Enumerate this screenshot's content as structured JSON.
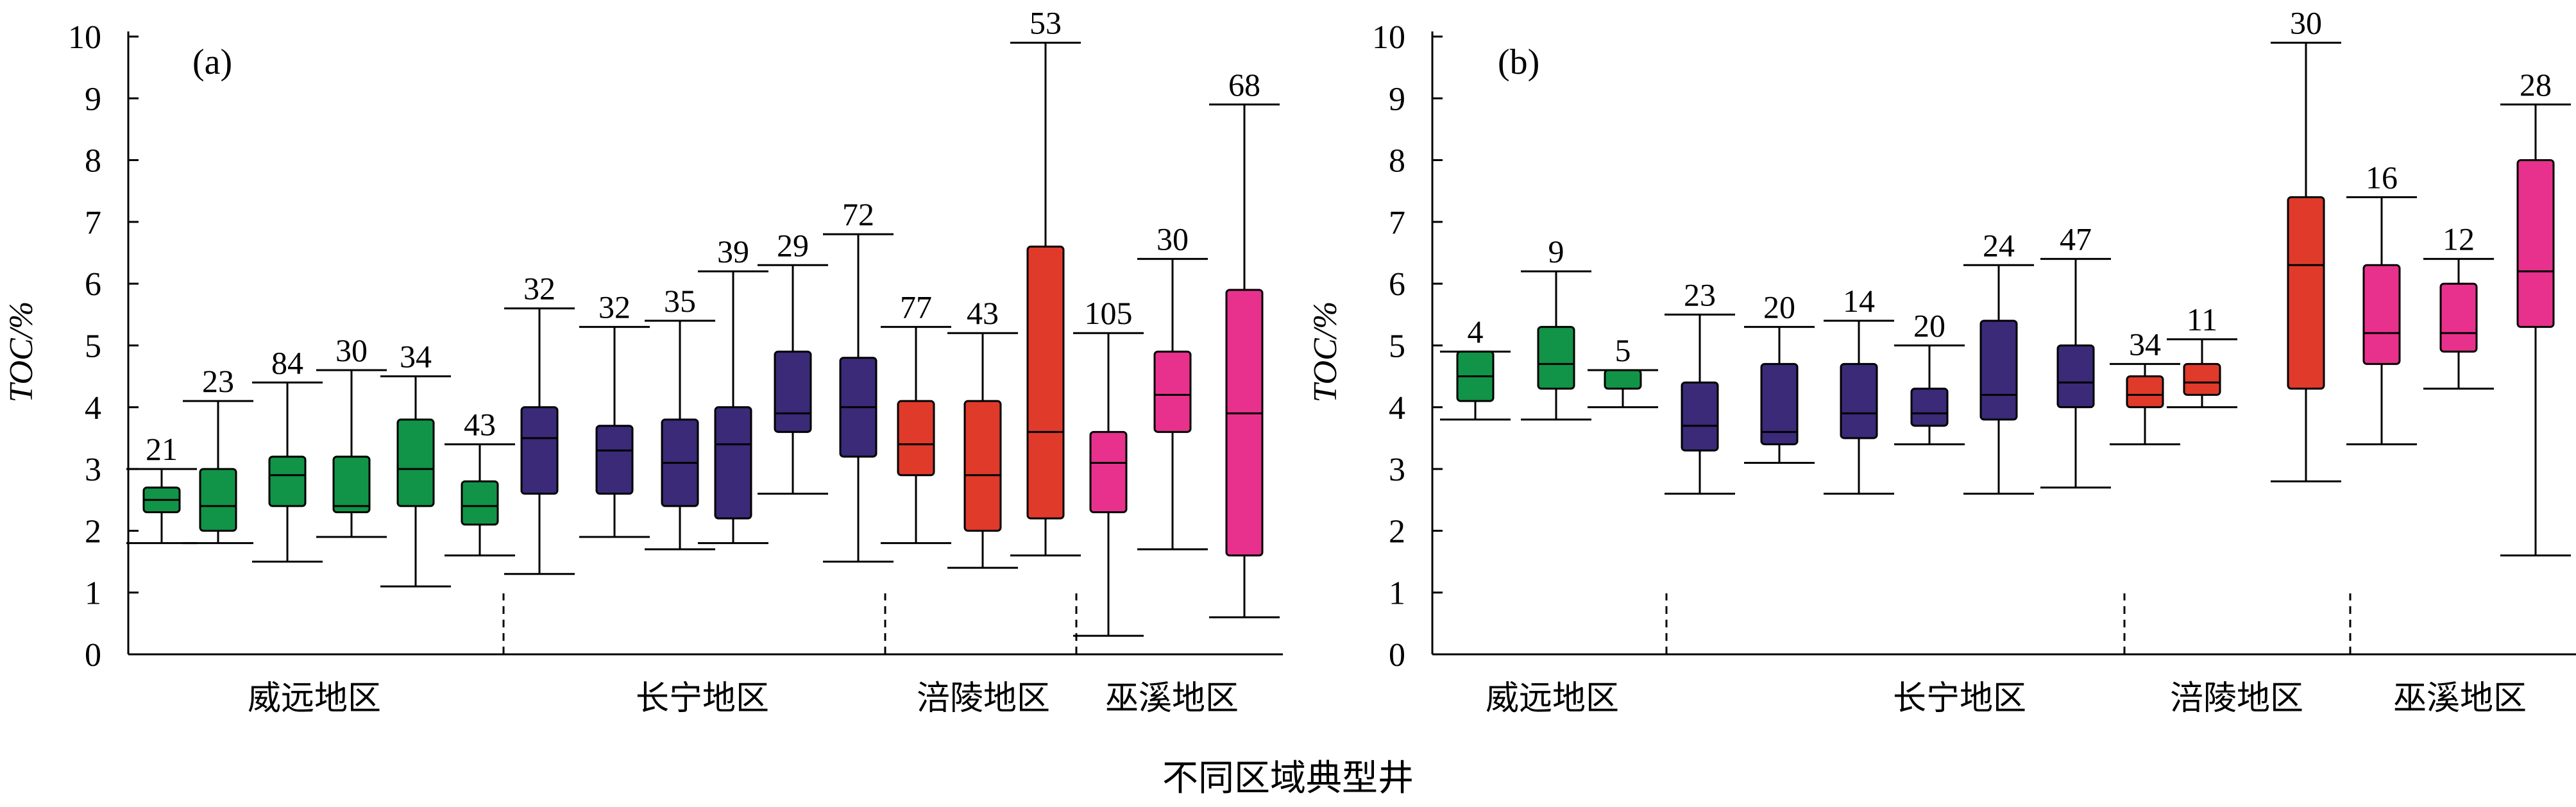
{
  "x_title": "不同区域典型井",
  "colors": {
    "weiyuan": "#119447",
    "changning": "#3a2a78",
    "fuling": "#e03a2b",
    "wuxi": "#e8318c",
    "axis": "#000000"
  },
  "chart_data": [
    {
      "type": "boxplot",
      "panel_label": "(a)",
      "ylabel": "TOC/%",
      "xlabel": "不同区域典型井",
      "ylim": [
        0,
        10
      ],
      "yticks": [
        0,
        1,
        2,
        3,
        4,
        5,
        6,
        7,
        8,
        9,
        10
      ],
      "groups": [
        {
          "name": "威远地区",
          "color_key": "weiyuan",
          "boxes": [
            {
              "n": "21",
              "min": 1.8,
              "q1": 2.3,
              "median": 2.5,
              "q3": 2.7,
              "max": 3.0
            },
            {
              "n": "23",
              "min": 1.8,
              "q1": 2.0,
              "median": 2.4,
              "q3": 3.0,
              "max": 4.1
            },
            {
              "n": "84",
              "min": 1.5,
              "q1": 2.4,
              "median": 2.9,
              "q3": 3.2,
              "max": 4.4
            },
            {
              "n": "30",
              "min": 1.9,
              "q1": 2.3,
              "median": 2.4,
              "q3": 3.2,
              "max": 4.6
            },
            {
              "n": "34",
              "min": 1.1,
              "q1": 2.4,
              "median": 3.0,
              "q3": 3.8,
              "max": 4.5
            },
            {
              "n": "43",
              "min": 1.6,
              "q1": 2.1,
              "median": 2.4,
              "q3": 2.8,
              "max": 3.4
            }
          ]
        },
        {
          "name": "长宁地区",
          "color_key": "changning",
          "boxes": [
            {
              "n": "32",
              "min": 1.3,
              "q1": 2.6,
              "median": 3.5,
              "q3": 4.0,
              "max": 5.6
            },
            {
              "n": "32",
              "min": 1.9,
              "q1": 2.6,
              "median": 3.3,
              "q3": 3.7,
              "max": 5.3
            },
            {
              "n": "35",
              "min": 1.7,
              "q1": 2.4,
              "median": 3.1,
              "q3": 3.8,
              "max": 5.4
            },
            {
              "n": "39",
              "min": 1.8,
              "q1": 2.2,
              "median": 3.4,
              "q3": 4.0,
              "max": 6.2
            },
            {
              "n": "29",
              "min": 2.6,
              "q1": 3.6,
              "median": 3.9,
              "q3": 4.9,
              "max": 6.3
            },
            {
              "n": "72",
              "min": 1.5,
              "q1": 3.2,
              "median": 4.0,
              "q3": 4.8,
              "max": 6.8
            }
          ]
        },
        {
          "name": "涪陵地区",
          "color_key": "fuling",
          "boxes": [
            {
              "n": "77",
              "min": 1.8,
              "q1": 2.9,
              "median": 3.4,
              "q3": 4.1,
              "max": 5.3
            },
            {
              "n": "43",
              "min": 1.4,
              "q1": 2.0,
              "median": 2.9,
              "q3": 4.1,
              "max": 5.2
            },
            {
              "n": "53",
              "min": 1.6,
              "q1": 2.2,
              "median": 3.6,
              "q3": 6.6,
              "max": 9.9
            }
          ]
        },
        {
          "name": "巫溪地区",
          "color_key": "wuxi",
          "boxes": [
            {
              "n": "105",
              "min": 0.3,
              "q1": 2.3,
              "median": 3.1,
              "q3": 3.6,
              "max": 5.2
            },
            {
              "n": "30",
              "min": 1.7,
              "q1": 3.6,
              "median": 4.2,
              "q3": 4.9,
              "max": 6.4
            },
            {
              "n": "68",
              "min": 0.6,
              "q1": 1.6,
              "median": 3.9,
              "q3": 5.9,
              "max": 8.9
            }
          ]
        }
      ]
    },
    {
      "type": "boxplot",
      "panel_label": "(b)",
      "ylabel": "TOC/%",
      "xlabel": "不同区域典型井",
      "ylim": [
        0,
        10
      ],
      "yticks": [
        0,
        1,
        2,
        3,
        4,
        5,
        6,
        7,
        8,
        9,
        10
      ],
      "groups": [
        {
          "name": "威远地区",
          "color_key": "weiyuan",
          "boxes": [
            {
              "n": "4",
              "min": 3.8,
              "q1": 4.1,
              "median": 4.5,
              "q3": 4.9,
              "max": 4.9
            },
            {
              "n": "9",
              "min": 3.8,
              "q1": 4.3,
              "median": 4.7,
              "q3": 5.3,
              "max": 6.2
            },
            {
              "n": "5",
              "min": 4.0,
              "q1": 4.3,
              "median": 4.6,
              "q3": 4.6,
              "max": 4.6
            }
          ]
        },
        {
          "name": "长宁地区",
          "color_key": "changning",
          "boxes": [
            {
              "n": "23",
              "min": 2.6,
              "q1": 3.3,
              "median": 3.7,
              "q3": 4.4,
              "max": 5.5
            },
            {
              "n": "20",
              "min": 3.1,
              "q1": 3.4,
              "median": 3.6,
              "q3": 4.7,
              "max": 5.3
            },
            {
              "n": "14",
              "min": 2.6,
              "q1": 3.5,
              "median": 3.9,
              "q3": 4.7,
              "max": 5.4
            },
            {
              "n": "20",
              "min": 3.4,
              "q1": 3.7,
              "median": 3.9,
              "q3": 4.3,
              "max": 5.0
            },
            {
              "n": "24",
              "min": 2.6,
              "q1": 3.8,
              "median": 4.2,
              "q3": 5.4,
              "max": 6.3
            },
            {
              "n": "47",
              "min": 2.7,
              "q1": 4.0,
              "median": 4.4,
              "q3": 5.0,
              "max": 6.4
            }
          ]
        },
        {
          "name": "涪陵地区",
          "color_key": "fuling",
          "boxes": [
            {
              "n": "34",
              "min": 3.4,
              "q1": 4.0,
              "median": 4.2,
              "q3": 4.5,
              "max": 4.7
            },
            {
              "n": "11",
              "min": 4.0,
              "q1": 4.2,
              "median": 4.4,
              "q3": 4.7,
              "max": 5.1
            },
            {
              "n": "30",
              "min": 2.8,
              "q1": 4.3,
              "median": 6.3,
              "q3": 7.4,
              "max": 9.9
            }
          ]
        },
        {
          "name": "巫溪地区",
          "color_key": "wuxi",
          "boxes": [
            {
              "n": "16",
              "min": 3.4,
              "q1": 4.7,
              "median": 5.2,
              "q3": 6.3,
              "max": 7.4
            },
            {
              "n": "12",
              "min": 4.3,
              "q1": 4.9,
              "median": 5.2,
              "q3": 6.0,
              "max": 6.4
            },
            {
              "n": "28",
              "min": 1.6,
              "q1": 5.3,
              "median": 6.2,
              "q3": 8.0,
              "max": 8.9
            }
          ]
        }
      ]
    }
  ]
}
